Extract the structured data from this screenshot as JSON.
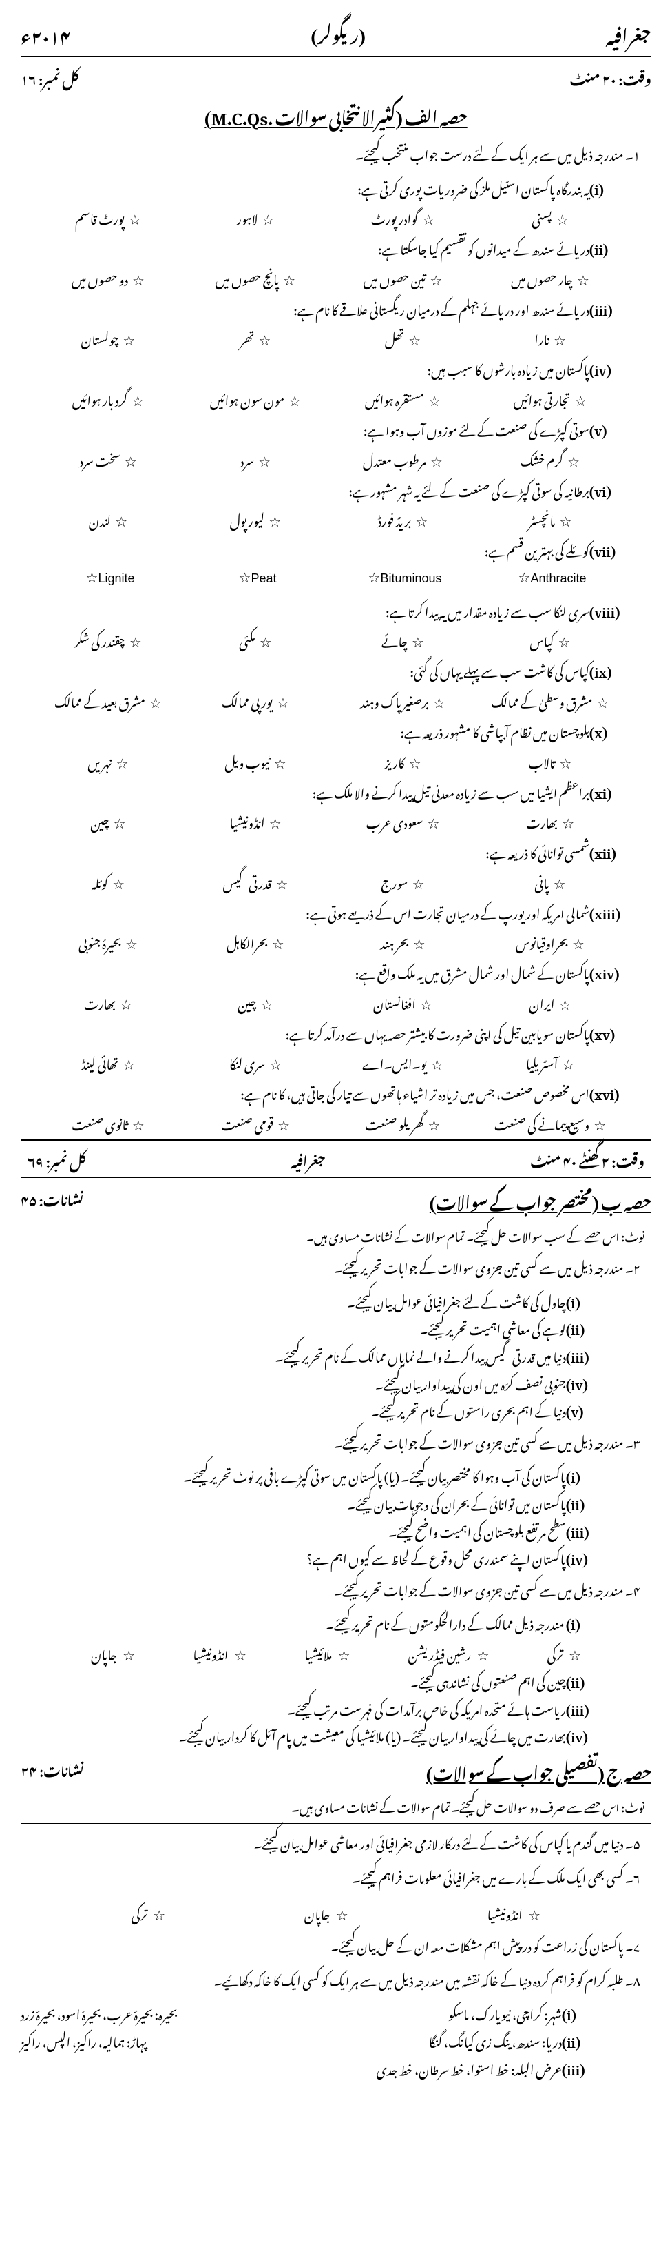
{
  "header": {
    "subject": "جغرافیہ",
    "mode": "(ریگولر)",
    "year": "۲۰۱۴ء"
  },
  "sub1": {
    "time": "وقت: ۲۰ منٹ",
    "marks": "کل نمبر: ۱۶"
  },
  "sectionA": {
    "title": "حصہ الف (کثیرالانتخابی سوالات .M.C.Qs)",
    "instr": "۱۔ مندرجہ ذیل میں سے ہر ایک کے لئے درست جواب منتخب کیجئے۔",
    "qs": [
      {
        "n": "(i)",
        "t": "یہ بندرگاہ پاکستان اسٹیل ملز کی ضروریات پوری کرتی ہے:",
        "o": [
          "پسنی",
          "گوادر پورٹ",
          "لاہور",
          "پورٹ قاسم"
        ]
      },
      {
        "n": "(ii)",
        "t": "دریائے سندھ کے میدانوں کو تقسیم کیا جاسکتا ہے:",
        "o": [
          "چار حصوں میں",
          "تین حصوں میں",
          "پانچ حصوں میں",
          "دو حصوں میں"
        ]
      },
      {
        "n": "(iii)",
        "t": "دریائے سندھ اور دریائے جہلم کے درمیان ریگستانی علاقے کا نام ہے:",
        "o": [
          "نارا",
          "تھل",
          "تھر",
          "چولستان"
        ]
      },
      {
        "n": "(iv)",
        "t": "پاکستان میں زیادہ بارشوں کا سبب ہیں:",
        "o": [
          "تجارتی ہوائیں",
          "مستقرہ ہوائیں",
          "مون سون ہوائیں",
          "گرد بار ہوائیں"
        ]
      },
      {
        "n": "(v)",
        "t": "سوتی کپڑے کی صنعت کے لئے موزوں آب وہوا ہے:",
        "o": [
          "گرم خشک",
          "مرطوب معتدل",
          "سرد",
          "سخت سرد"
        ]
      },
      {
        "n": "(vi)",
        "t": "برطانیہ کی سوتی کپڑے کی صنعت کے لئے یہ شہر مشہور ہے:",
        "o": [
          "مانچسٹر",
          "بریڈ فورڈ",
          "لیور پول",
          "لندن"
        ]
      },
      {
        "n": "(vii)",
        "t": "کوئلے کی بہترین قسم ہے:",
        "o": [
          "Anthracite",
          "Bituminous",
          "Peat",
          "Lignite"
        ],
        "eng": true
      },
      {
        "n": "(viii)",
        "t": "سری لنکا سب سے زیادہ مقدار میں یہ پیدا کرتا ہے:",
        "o": [
          "کپاس",
          "چائے",
          "مکئی",
          "چقندر کی شکر"
        ]
      },
      {
        "n": "(ix)",
        "t": "کپاس کی کاشت سب سے پہلے یہاں کی گئی:",
        "o": [
          "مشرق وسطیٰ کے ممالک",
          "برصغیر پاک وہند",
          "یورپی ممالک",
          "مشرق بعید کے ممالک"
        ]
      },
      {
        "n": "(x)",
        "t": "بلوچستان میں نظام آبپاشی کا مشہور ذریعہ ہے:",
        "o": [
          "تالاب",
          "کاریز",
          "ٹیوب ویل",
          "نہریں"
        ]
      },
      {
        "n": "(xi)",
        "t": "براعظم ایشیا میں سب سے زیادہ معدنی تیل پیدا کرنے والا ملک ہے:",
        "o": [
          "بھارت",
          "سعودی عرب",
          "انڈونیشیا",
          "چین"
        ]
      },
      {
        "n": "(xii)",
        "t": "شمسی توانائی کا ذریعہ ہے:",
        "o": [
          "پانی",
          "سورج",
          "قدرتی گیس",
          "کوئلہ"
        ]
      },
      {
        "n": "(xiii)",
        "t": "شمالی امریکہ اور یورپ کے درمیان تجارت اس کے ذریعے ہوتی ہے:",
        "o": [
          "بحراوقیانوس",
          "بحر ہند",
          "بحرالکاہل",
          "بحیرۂ جنوبی"
        ]
      },
      {
        "n": "(xiv)",
        "t": "پاکستان کے شمال اور شمال مشرق میں یہ ملک واقع ہے:",
        "o": [
          "ایران",
          "افغانستان",
          "چین",
          "بھارت"
        ]
      },
      {
        "n": "(xv)",
        "t": "پاکستان سویابین تیل کی اپنی ضرورت کا بیشتر حصہ یہاں سے درآمد کرتا ہے:",
        "o": [
          "آسٹریلیا",
          "یو۔ایس۔اے",
          "سری لنکا",
          "تھائی لینڈ"
        ]
      },
      {
        "n": "(xvi)",
        "t": "اس مخصوص صنعت، جس میں زیادہ تر اشیاء ہاتھوں سے تیار کی جاتی ہیں، کا نام ہے:",
        "o": [
          "وسیع پیمانے کی صنعت",
          "گھریلو صنعت",
          "قومی صنعت",
          "ثانوی صنعت"
        ]
      }
    ]
  },
  "mid": {
    "time": "وقت: ۲ گھنٹے ۴۰ منٹ",
    "subject": "جغرافیہ",
    "marks": "کل نمبر: ۶۹"
  },
  "sectionB": {
    "title": "حصہ ب (مختصر جواب کے سوالات)",
    "marks": "نشانات: ۴۵",
    "note": "نوٹ: اس حصے کے سب سوالات حل کیجئے۔ تمام سوالات کے نشانات مساوی ہیں۔",
    "q2": {
      "lead": "۲۔ مندرجہ ذیل میں سے کسی تین جزوی سوالات کے جوابات تحریر کیجئے۔",
      "subs": [
        {
          "n": "(i)",
          "t": "چاول کی کاشت کے لئے جغرافیائی عوامل بیان کیجئے۔"
        },
        {
          "n": "(ii)",
          "t": "لوہے کی معاشی اہمیت تحریر کیجئے۔"
        },
        {
          "n": "(iii)",
          "t": "دنیا میں قدرتی گیس پیدا کرنے والے نمایاں ممالک کے نام تحریر کیجئے۔"
        },
        {
          "n": "(iv)",
          "t": "جنوبی نصف کرّہ میں اون کی پیداوار بیان کیجئے۔"
        },
        {
          "n": "(v)",
          "t": "دنیا کے اہم بحری راستوں کے نام تحریر کیجئے۔"
        }
      ]
    },
    "q3": {
      "lead": "۳۔ مندرجہ ذیل میں سے کسی تین جزوی سوالات کے جوابات تحریر کیجئے۔",
      "subs": [
        {
          "n": "(i)",
          "t": "پاکستان کی آب وہوا کا مختصر بیان کیجئے۔ (یا) پاکستان میں سوتی کپڑے بافی پر نوٹ تحریر کیجئے۔"
        },
        {
          "n": "(ii)",
          "t": "پاکستان میں توانائی کے بحران کی وجوہات بیان کیجئے۔"
        },
        {
          "n": "(iii)",
          "t": "سطح مرتفع بلوچستان کی اہمیت واضح کیجئے۔"
        },
        {
          "n": "(iv)",
          "t": "پاکستان اپنے سمندری محل وقوع کے لحاظ سے کیوں اہم ہے؟"
        }
      ]
    },
    "q4": {
      "lead": "۴۔ مندرجہ ذیل میں سے کسی تین جزوی سوالات کے جوابات تحریر کیجئے۔",
      "sub1": {
        "n": "(i)",
        "t": "مندرجہ ذیل ممالک کے دارالحکومتوں کے نام تحریر کیجئے۔"
      },
      "countries": [
        "ترکی",
        "رشین فیڈریشن",
        "ملائیشیا",
        "انڈونیشیا",
        "جاپان"
      ],
      "subs": [
        {
          "n": "(ii)",
          "t": "چین کی اہم صنعتوں کی نشاندہی کیجئے۔"
        },
        {
          "n": "(iii)",
          "t": "ریاست ہائے متحدہ امریکہ کی خاص برآمدات کی فہرست مرتب کیجئے۔"
        },
        {
          "n": "(iv)",
          "t": "بھارت میں چائے کی پیداوار بیان کیجئے۔ (یا) ملائیشیا کی معیشت میں پام آئل کا کردار بیان کیجئے۔"
        }
      ]
    }
  },
  "sectionC": {
    "title": "حصہ ج (تفصیلی جواب کے سوالات)",
    "marks": "نشانات: ۲۴",
    "note": "نوٹ: اس حصے سے صرف دو سوالات حل کیجئے۔ تمام سوالات کے نشانات مساوی ہیں۔",
    "q5": "۵۔ دنیا میں گندم یا کپاس کی کاشت کے لئے درکار لازمی جغرافیائی اور معاشی عوامل بیان کیجئے۔",
    "q6": {
      "lead": "۶۔ کسی بھی ایک ملک کے بارے میں جغرافیائی معلومات فراہم کیجئے۔",
      "opts": [
        "انڈونیشیا",
        "جاپان",
        "ترکی"
      ]
    },
    "q7": "۷۔ پاکستان کی زراعت کو درپیش اہم مشکلات معہ ان کے حل بیان کیجئے۔",
    "q8": {
      "lead": "۸۔ طلبہ کرام کو فراہم کردہ دنیا کے خاکہ نقشہ میں مندرجہ ذیل میں سے ہر ایک کو کسی ایک کا خاکہ دکھائیے۔",
      "rows": [
        {
          "lbl": "(i)",
          "cat": "شہر:",
          "items": "کراچی، نیویارک، ماسکو",
          "alt": "بحیرہ: بحیرۂ عرب، بحیرۂ اسود، بحیرۂ زرد"
        },
        {
          "lbl": "(ii)",
          "cat": "دریا:",
          "items": "سندھ، ینگ زی کیانگ، گنگا",
          "alt": "پہاڑ: ہمالیہ، راکیز، الپس، راکیز"
        },
        {
          "lbl": "(iii)",
          "cat": "",
          "items": "عرض البلد: خط استوا، خط سرطان، خط جدی",
          "alt": ""
        }
      ]
    }
  }
}
